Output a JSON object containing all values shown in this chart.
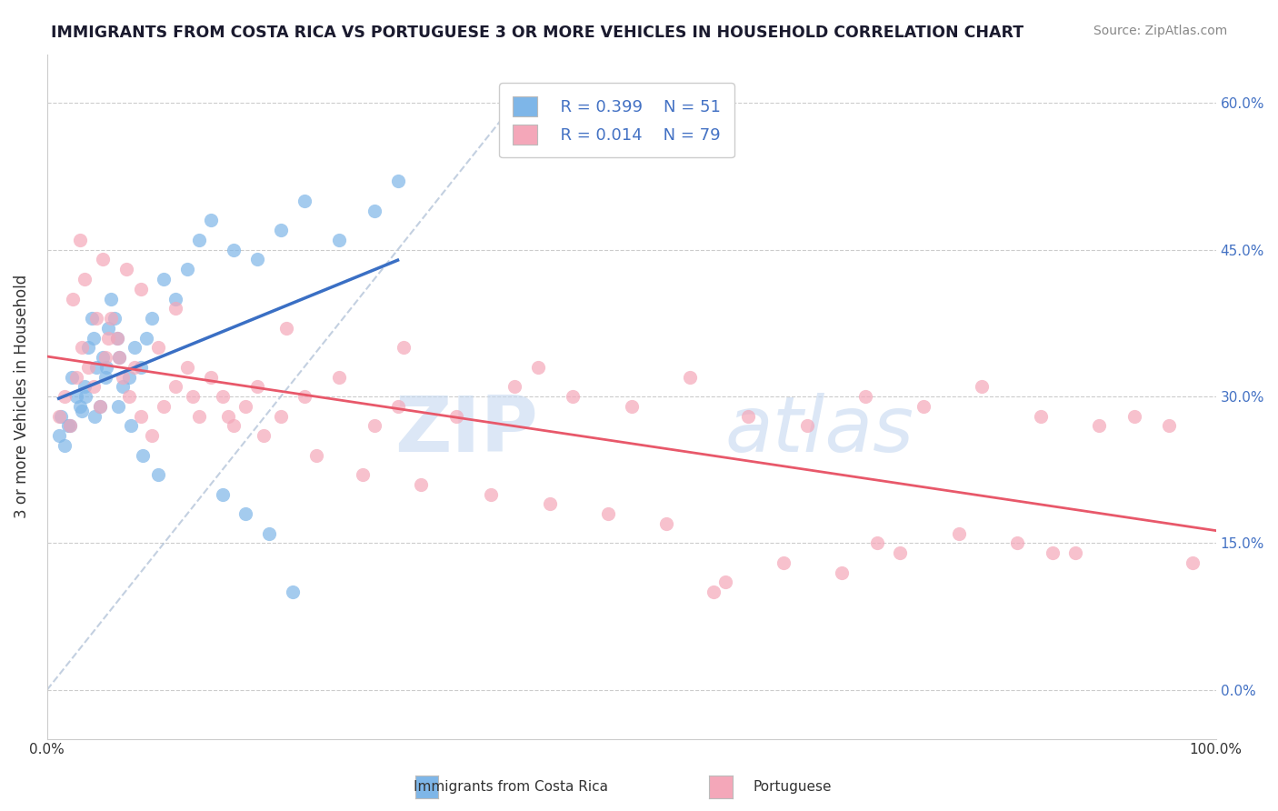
{
  "title": "IMMIGRANTS FROM COSTA RICA VS PORTUGUESE 3 OR MORE VEHICLES IN HOUSEHOLD CORRELATION CHART",
  "source_text": "Source: ZipAtlas.com",
  "ylabel": "3 or more Vehicles in Household",
  "xlim": [
    0.0,
    100.0
  ],
  "ylim": [
    -5.0,
    65.0
  ],
  "yticks": [
    0.0,
    15.0,
    30.0,
    45.0,
    60.0
  ],
  "watermark_zip": "ZIP",
  "watermark_atlas": "atlas",
  "legend_r1": "R = 0.399",
  "legend_n1": "N = 51",
  "legend_r2": "R = 0.014",
  "legend_n2": "N = 79",
  "legend_label1": "Immigrants from Costa Rica",
  "legend_label2": "Portuguese",
  "color_blue": "#7EB6E8",
  "color_pink": "#F4A7B9",
  "line_blue": "#3A6FC4",
  "line_pink": "#E8586A",
  "line_dashed": "#AABCD4",
  "background": "#FFFFFF",
  "scatter_blue_x": [
    1.2,
    1.8,
    2.1,
    2.5,
    3.0,
    3.2,
    3.5,
    3.8,
    4.0,
    4.2,
    4.5,
    4.8,
    5.0,
    5.2,
    5.5,
    5.8,
    6.0,
    6.2,
    6.5,
    7.0,
    7.5,
    8.0,
    8.5,
    9.0,
    10.0,
    11.0,
    12.0,
    13.0,
    14.0,
    16.0,
    18.0,
    20.0,
    22.0,
    25.0,
    28.0,
    30.0,
    1.0,
    1.5,
    2.0,
    2.8,
    3.3,
    4.1,
    5.1,
    6.1,
    7.2,
    8.2,
    9.5,
    15.0,
    17.0,
    19.0,
    21.0
  ],
  "scatter_blue_y": [
    28.0,
    27.0,
    32.0,
    30.0,
    28.5,
    31.0,
    35.0,
    38.0,
    36.0,
    33.0,
    29.0,
    34.0,
    32.0,
    37.0,
    40.0,
    38.0,
    36.0,
    34.0,
    31.0,
    32.0,
    35.0,
    33.0,
    36.0,
    38.0,
    42.0,
    40.0,
    43.0,
    46.0,
    48.0,
    45.0,
    44.0,
    47.0,
    50.0,
    46.0,
    49.0,
    52.0,
    26.0,
    25.0,
    27.0,
    29.0,
    30.0,
    28.0,
    33.0,
    29.0,
    27.0,
    24.0,
    22.0,
    20.0,
    18.0,
    16.0,
    10.0
  ],
  "scatter_pink_x": [
    1.0,
    1.5,
    2.0,
    2.5,
    3.0,
    3.5,
    4.0,
    4.5,
    5.0,
    5.5,
    6.0,
    6.5,
    7.0,
    8.0,
    9.0,
    10.0,
    11.0,
    12.0,
    13.0,
    14.0,
    15.0,
    16.0,
    17.0,
    18.0,
    20.0,
    22.0,
    25.0,
    28.0,
    30.0,
    35.0,
    40.0,
    45.0,
    50.0,
    55.0,
    60.0,
    65.0,
    70.0,
    75.0,
    80.0,
    85.0,
    90.0,
    2.2,
    3.2,
    4.2,
    5.2,
    6.2,
    7.5,
    9.5,
    12.5,
    15.5,
    18.5,
    23.0,
    27.0,
    32.0,
    38.0,
    43.0,
    48.0,
    53.0,
    58.0,
    63.0,
    68.0,
    73.0,
    78.0,
    83.0,
    88.0,
    93.0,
    96.0,
    2.8,
    4.8,
    6.8,
    8.0,
    11.0,
    20.5,
    30.5,
    42.0,
    57.0,
    71.0,
    86.0,
    98.0
  ],
  "scatter_pink_y": [
    28.0,
    30.0,
    27.0,
    32.0,
    35.0,
    33.0,
    31.0,
    29.0,
    34.0,
    38.0,
    36.0,
    32.0,
    30.0,
    28.0,
    26.0,
    29.0,
    31.0,
    33.0,
    28.0,
    32.0,
    30.0,
    27.0,
    29.0,
    31.0,
    28.0,
    30.0,
    32.0,
    27.0,
    29.0,
    28.0,
    31.0,
    30.0,
    29.0,
    32.0,
    28.0,
    27.0,
    30.0,
    29.0,
    31.0,
    28.0,
    27.0,
    40.0,
    42.0,
    38.0,
    36.0,
    34.0,
    33.0,
    35.0,
    30.0,
    28.0,
    26.0,
    24.0,
    22.0,
    21.0,
    20.0,
    19.0,
    18.0,
    17.0,
    11.0,
    13.0,
    12.0,
    14.0,
    16.0,
    15.0,
    14.0,
    28.0,
    27.0,
    46.0,
    44.0,
    43.0,
    41.0,
    39.0,
    37.0,
    35.0,
    33.0,
    10.0,
    15.0,
    14.0,
    13.0
  ]
}
